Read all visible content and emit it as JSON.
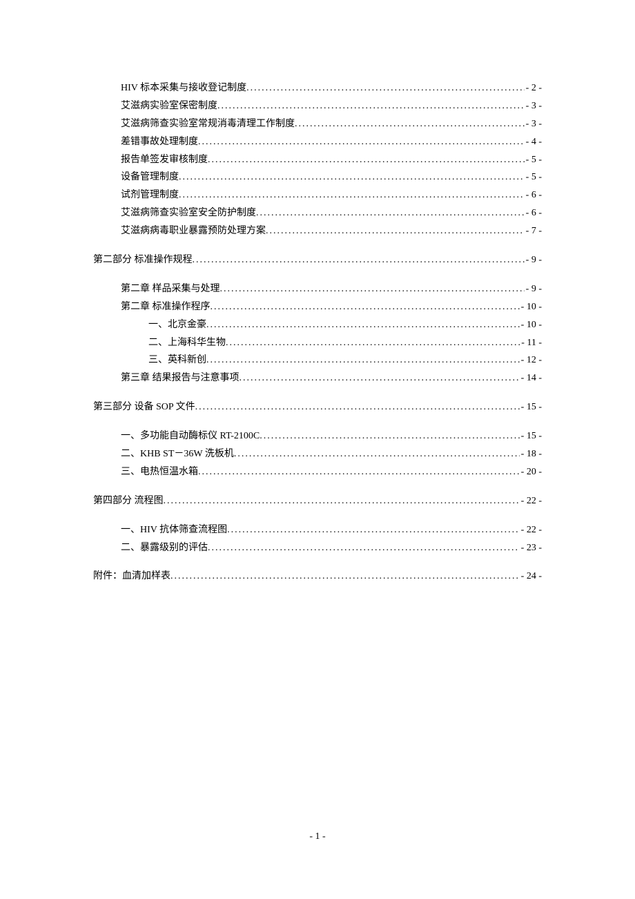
{
  "toc": {
    "groups": [
      {
        "spaceBefore": false,
        "entries": [
          {
            "title": "HIV 标本采集与接收登记制度",
            "page": "- 2 -",
            "indent": 1
          },
          {
            "title": "艾滋病实验室保密制度",
            "page": "- 3 -",
            "indent": 1
          },
          {
            "title": "艾滋病筛查实验室常规消毒清理工作制度",
            "page": "- 3 -",
            "indent": 1
          },
          {
            "title": "差错事故处理制度",
            "page": "- 4 -",
            "indent": 1
          },
          {
            "title": "报告单签发审核制度",
            "page": "- 5 -",
            "indent": 1
          },
          {
            "title": "设备管理制度",
            "page": "- 5 -",
            "indent": 1
          },
          {
            "title": "试剂管理制度",
            "page": "- 6 -",
            "indent": 1
          },
          {
            "title": "艾滋病筛查实验室安全防护制度",
            "page": "- 6 -",
            "indent": 1
          },
          {
            "title": "艾滋病病毒职业暴露预防处理方案",
            "page": "- 7 -",
            "indent": 1
          }
        ]
      },
      {
        "spaceBefore": true,
        "entries": [
          {
            "title": "第二部分  标准操作规程",
            "page": "- 9 -",
            "indent": 0
          }
        ]
      },
      {
        "spaceBefore": true,
        "entries": [
          {
            "title": "第二章  样品采集与处理",
            "page": "- 9 -",
            "indent": 1
          },
          {
            "title": "第二章  标准操作程序",
            "page": "- 10 -",
            "indent": 1
          },
          {
            "title": "一、北京金豪",
            "page": "- 10 -",
            "indent": 2
          },
          {
            "title": "二、上海科华生物",
            "page": "- 11 -",
            "indent": 2
          },
          {
            "title": "三、英科新创",
            "page": "- 12 -",
            "indent": 2
          },
          {
            "title": "第三章  结果报告与注意事项",
            "page": "- 14 -",
            "indent": 1
          }
        ]
      },
      {
        "spaceBefore": true,
        "entries": [
          {
            "title": "第三部分  设备 SOP 文件",
            "page": "- 15 -",
            "indent": 0
          }
        ]
      },
      {
        "spaceBefore": true,
        "entries": [
          {
            "title": "一、多功能自动酶标仪 RT-2100C",
            "page": "- 15 -",
            "indent": 1
          },
          {
            "title": "二、KHB ST－36W 洗板机",
            "page": "- 18 -",
            "indent": 1
          },
          {
            "title": "三、电热恒温水箱",
            "page": "- 20 -",
            "indent": 1
          }
        ]
      },
      {
        "spaceBefore": true,
        "entries": [
          {
            "title": "第四部分  流程图",
            "page": "- 22 -",
            "indent": 0
          }
        ]
      },
      {
        "spaceBefore": true,
        "entries": [
          {
            "title": "一、HIV 抗体筛查流程图",
            "page": "- 22 -",
            "indent": 1
          },
          {
            "title": "二、暴露级别的评估",
            "page": "- 23 -",
            "indent": 1
          }
        ]
      },
      {
        "spaceBefore": true,
        "entries": [
          {
            "title": "附件：血清加样表",
            "page": "- 24 -",
            "indent": 0
          }
        ]
      }
    ]
  },
  "pageNumber": "- 1 -",
  "styling": {
    "pageWidth": 920,
    "pageHeight": 1302,
    "backgroundColor": "#ffffff",
    "textColor": "#000000",
    "fontSize": 14,
    "lineHeight": 1.85,
    "contentPaddingTop": 115,
    "contentPaddingLeft": 135,
    "contentPaddingRight": 135,
    "indentStep": 40,
    "sectionGap": 16,
    "pageNumberBottom": 82
  }
}
